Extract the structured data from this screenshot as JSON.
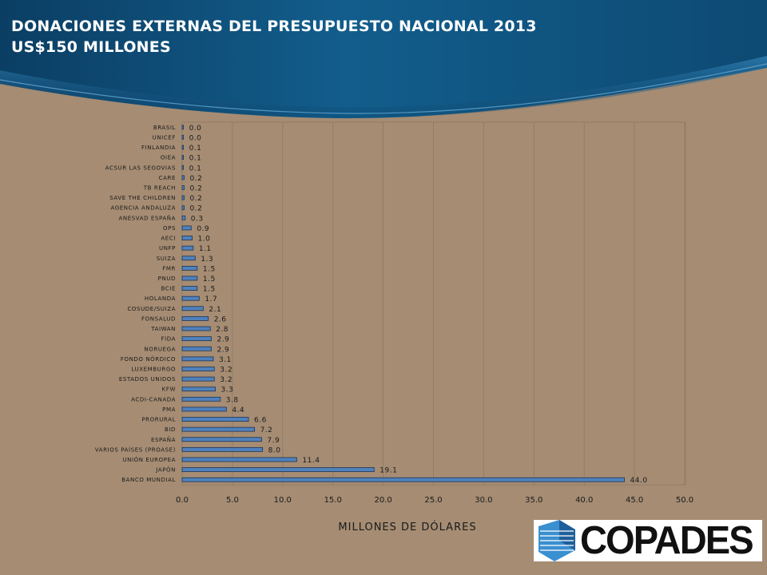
{
  "slide": {
    "title_line1": "DONACIONES EXTERNAS DEL PRESUPUESTO NACIONAL 2013",
    "title_line2": "US$150 MILLONES"
  },
  "logo": {
    "text": "COPADES"
  },
  "colors": {
    "background": "#a58c73",
    "header": "#0d4a73",
    "bar_fill": "#4f81bd",
    "bar_stroke": "#1f3550"
  },
  "chart_data": {
    "type": "bar",
    "orientation": "horizontal",
    "title": "",
    "xlabel": "MILLONES DE DÓLARES",
    "ylabel": "",
    "xlim": [
      0,
      50
    ],
    "x_ticks": [
      "0.0",
      "5.0",
      "10.0",
      "15.0",
      "20.0",
      "25.0",
      "30.0",
      "35.0",
      "40.0",
      "45.0",
      "50.0"
    ],
    "grid": true,
    "legend": "none",
    "categories": [
      "BRASIL",
      "UNICEF",
      "FINLANDIA",
      "OIEA",
      "ACSUR LAS SEGOVIAS",
      "CARE",
      "TB REACH",
      "SAVE THE CHILDREN",
      "AGENCIA ANDALUZA",
      "ANESVAD ESPAÑA",
      "OPS",
      "AECI",
      "UNFP",
      "SUIZA",
      "FMR",
      "PNUD",
      "BCIE",
      "HOLANDA",
      "COSUDE/SUIZA",
      "FONSALUD",
      "TAIWAN",
      "FIDA",
      "NORUEGA",
      "FONDO NÓRDICO",
      "LUXEMBURGO",
      "ESTADOS UNIDOS",
      "KFW",
      "ACDI-CANADA",
      "PMA",
      "PRORURAL",
      "BID",
      "ESPAÑA",
      "VARIOS PAÍSES (PROASE)",
      "UNIÓN EUROPEA",
      "JAPÓN",
      "BANCO MUNDIAL"
    ],
    "values": [
      0.0,
      0.0,
      0.1,
      0.1,
      0.1,
      0.2,
      0.2,
      0.2,
      0.2,
      0.3,
      0.9,
      1.0,
      1.1,
      1.3,
      1.5,
      1.5,
      1.5,
      1.7,
      2.1,
      2.6,
      2.8,
      2.9,
      2.9,
      3.1,
      3.2,
      3.2,
      3.3,
      3.8,
      4.4,
      6.6,
      7.2,
      7.9,
      8.0,
      11.4,
      19.1,
      44.0
    ],
    "data_labels": [
      "0.0",
      "0.0",
      "0.1",
      "0.1",
      "0.1",
      "0.2",
      "0.2",
      "0.2",
      "0.2",
      "0.3",
      "0.9",
      "1.0",
      "1.1",
      "1.3",
      "1.5",
      "1.5",
      "1.5",
      "1.7",
      "2.1",
      "2.6",
      "2.8",
      "2.9",
      "2.9",
      "3.1",
      "3.2",
      "3.2",
      "3.3",
      "3.8",
      "4.4",
      "6.6",
      "7.2",
      "7.9",
      "8.0",
      "11.4",
      "19.1",
      "44.0"
    ]
  }
}
